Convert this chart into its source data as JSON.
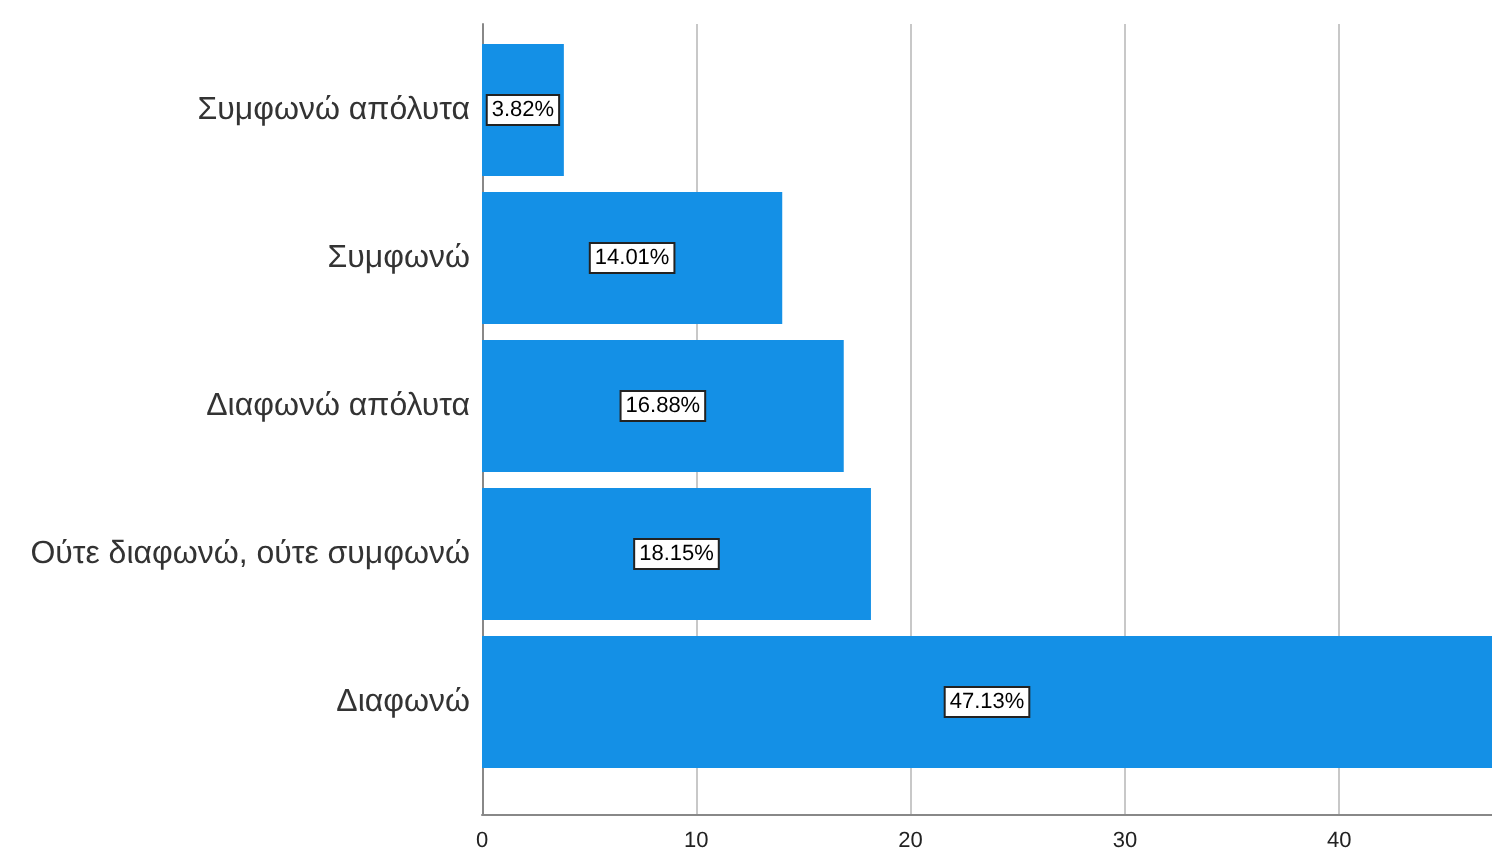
{
  "chart_data": {
    "type": "bar",
    "orientation": "horizontal",
    "categories": [
      "Συμφωνώ απόλυτα",
      "Συμφωνώ",
      "Διαφωνώ απόλυτα",
      "Ούτε διαφωνώ, ούτε συμφωνώ",
      "Διαφωνώ"
    ],
    "values": [
      3.82,
      14.01,
      16.88,
      18.15,
      47.13
    ],
    "color": "#1490e6",
    "value_labels": [
      "3.82%",
      "14.01%",
      "16.88%",
      "18.15%",
      "47.13%"
    ],
    "xlim": [
      0,
      47.13
    ],
    "xticks": [
      0,
      10,
      20,
      30,
      40
    ],
    "grid": "x"
  }
}
